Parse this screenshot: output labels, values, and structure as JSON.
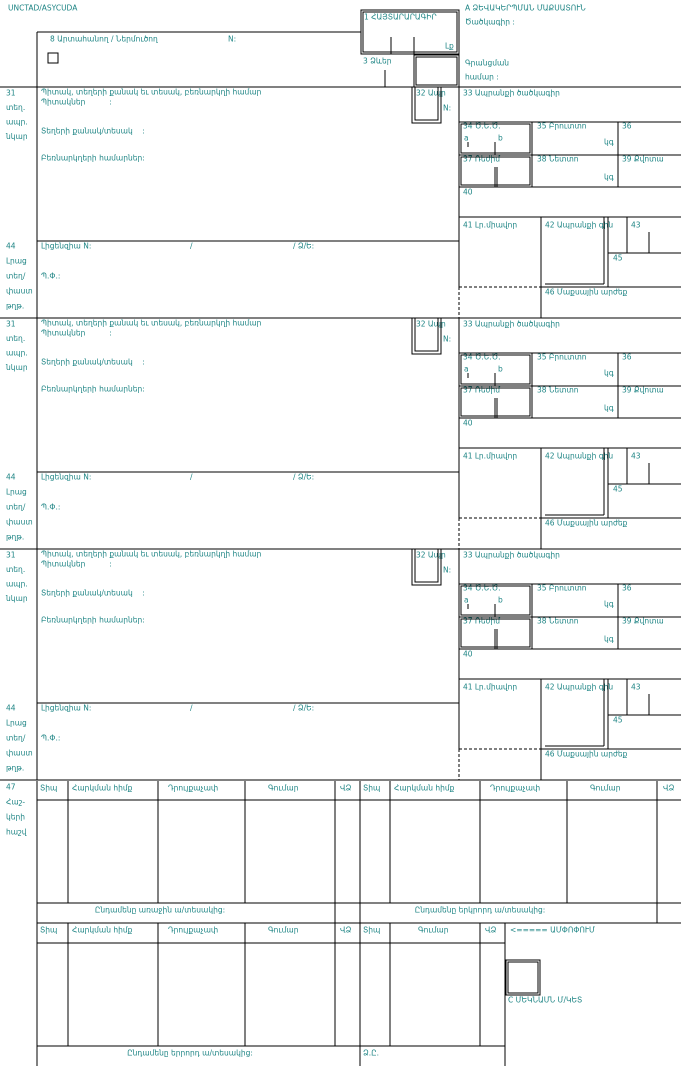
{
  "header": {
    "system": "UNCTAD/ASYCUDA",
    "exporter": "8 Արտահանող / Ներմուծող",
    "exporter_no": "N:",
    "declaration": "1 ՀԱՅՏԱՐԱՐԱԳԻՐ",
    "declaration_code": "Լք",
    "forms": "3 Ձևեր",
    "office": "A ՁԵՎԱԿԵՐՊՄԱՆ ՄԱՔՍԱՏՈՒՆ",
    "office_code": "Ծածկագիր :",
    "registration": "Գրանցման",
    "registration_no": "համար :"
  },
  "items": [
    {
      "box31": [
        "31",
        "տեղ.",
        "ապր.",
        "նկար"
      ],
      "marks_title": "Պիտակ, տեղերի քանակ եւ տեսակ, բեռնարկղի համար",
      "marks": "Պիտակներ          :",
      "packages": "Տեղերի քանակ/տեսակ    :",
      "containers": "Բեռնարկղերի համարներ:",
      "item_no": "32 Ապր",
      "item_n": "N:",
      "commodity_code": "33 Ապրանքի ծածկագիր",
      "origin": "34 Ծ.Ե.Ծ.",
      "origin_a": "a",
      "origin_b": "b",
      "gross": "35 Բրուտտո",
      "gross_unit": "կգ",
      "box36": "36",
      "cpc": "37 Ռեժիմ",
      "net": "38 Նետտո",
      "net_unit": "կգ",
      "quota": "39 Քվոտա",
      "box40": "40",
      "supp_units": "41 Լր.միավոր",
      "item_price": "42 Ապրանքի գին",
      "box43": "43",
      "box45": "45",
      "customs_value": "46 Մաքսային արժեք",
      "box44": [
        "44",
        "Լրաց",
        "տեղ/",
        "փաստ",
        "թղթ."
      ],
      "licence": "Լիցենզիա N:",
      "slash": "/",
      "dv": "/ Ձ/Ե:",
      "pf": "Պ.Փ.:"
    },
    {
      "box31": [
        "31",
        "տեղ.",
        "ապր.",
        "նկար"
      ],
      "marks_title": "Պիտակ, տեղերի քանակ եւ տեսակ, բեռնարկղի համար",
      "marks": "Պիտակներ          :",
      "packages": "Տեղերի քանակ/տեսակ    :",
      "containers": "Բեռնարկղերի համարներ:",
      "item_no": "32 Ապր",
      "item_n": "N:",
      "commodity_code": "33 Ապրանքի ծածկագիր",
      "origin": "34 Ծ.Ե.Ծ.",
      "origin_a": "a",
      "origin_b": "b",
      "gross": "35 Բրուտտո",
      "gross_unit": "կգ",
      "box36": "36",
      "cpc": "37 Ռեժիմ",
      "net": "38 Նետտո",
      "net_unit": "կգ",
      "quota": "39 Քվոտա",
      "box40": "40",
      "supp_units": "41 Լր.միավոր",
      "item_price": "42 Ապրանքի գին",
      "box43": "43",
      "box45": "45",
      "customs_value": "46 Մաքսային արժեք",
      "box44": [
        "44",
        "Լրաց",
        "տեղ/",
        "փաստ",
        "թղթ."
      ],
      "licence": "Լիցենզիա N:",
      "slash": "/",
      "dv": "/ Ձ/Ե:",
      "pf": "Պ.Փ.:"
    },
    {
      "box31": [
        "31",
        "տեղ.",
        "ապր.",
        "նկար"
      ],
      "marks_title": "Պիտակ, տեղերի քանակ եւ տեսակ, բեռնարկղի համար",
      "marks": "Պիտակներ          :",
      "packages": "Տեղերի քանակ/տեսակ    :",
      "containers": "Բեռնարկղերի համարներ:",
      "item_no": "32 Ապր",
      "item_n": "N:",
      "commodity_code": "33 Ապրանքի ծածկագիր",
      "origin": "34 Ծ.Ե.Ծ.",
      "origin_a": "a",
      "origin_b": "b",
      "gross": "35 Բրուտտո",
      "gross_unit": "կգ",
      "box36": "36",
      "cpc": "37 Ռեժիմ",
      "net": "38 Նետտո",
      "net_unit": "կգ",
      "quota": "39 Քվոտա",
      "box40": "40",
      "supp_units": "41 Լր.միավոր",
      "item_price": "42 Ապրանքի գին",
      "box43": "43",
      "box45": "45",
      "customs_value": "46 Մաքսային արժեք",
      "box44": [
        "44",
        "Լրաց",
        "տեղ/",
        "փաստ",
        "թղթ."
      ],
      "licence": "Լիցենզիա N:",
      "slash": "/",
      "dv": "/ Ձ/Ե:",
      "pf": "Պ.Փ.:"
    }
  ],
  "taxes": {
    "box47": [
      "47",
      "Հաշ-",
      "կերի",
      "հաշվ"
    ],
    "headers_1": [
      "Տիպ",
      "Հարկման հիմք",
      "Դրույքաչափ",
      "Գումար",
      "ՎՁ"
    ],
    "headers_2": [
      "Տիպ",
      "Հարկման հիմք",
      "Դրույքաչափ",
      "Գումար",
      "ՎՁ"
    ],
    "total_1": "Ընդամենը առաջին ա/տեսակից:",
    "total_2": "Ընդամենը երկրորդ ա/տեսակից:",
    "headers_3": [
      "Տիպ",
      "Հարկման հիմք",
      "Դրույքաչափ",
      "Գումար",
      "ՎՁ"
    ],
    "headers_4": [
      "Տիպ",
      "Գումար",
      "ՎՁ"
    ],
    "summary": "<===== ԱՄՓՈՓՈՒՄ",
    "total_3": "Ընդամենը երրորդ ա/տեսակից:",
    "total_c": "Ձ.Ը.",
    "box_c": "C ՄԵԿՆԱՄՆ Մ/ԿԵՏ"
  }
}
